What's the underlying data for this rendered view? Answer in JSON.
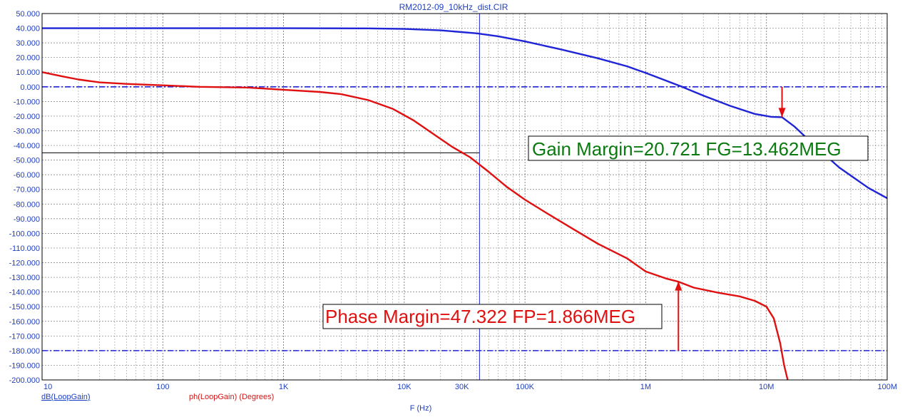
{
  "chart_data": {
    "type": "line",
    "title": "RM2012-09_10kHz_dist.CIR",
    "xlabel": "F (Hz)",
    "xscale": "log",
    "xlim": [
      10,
      100000000
    ],
    "ylim": [
      -200,
      50
    ],
    "x_ticks": [
      {
        "value": 10,
        "label": "10"
      },
      {
        "value": 100,
        "label": "100"
      },
      {
        "value": 1000,
        "label": "1K"
      },
      {
        "value": 10000,
        "label": "10K"
      },
      {
        "value": 30000,
        "label": "30K"
      },
      {
        "value": 100000,
        "label": "100K"
      },
      {
        "value": 1000000,
        "label": "1M"
      },
      {
        "value": 10000000,
        "label": "10M"
      },
      {
        "value": 100000000,
        "label": "100M"
      }
    ],
    "y_ticks": [
      {
        "value": 50,
        "label": "50.000"
      },
      {
        "value": 40,
        "label": "40.000"
      },
      {
        "value": 30,
        "label": "30.000"
      },
      {
        "value": 20,
        "label": "20.000"
      },
      {
        "value": 10,
        "label": "10.000"
      },
      {
        "value": 0,
        "label": "0.000"
      },
      {
        "value": -10,
        "label": "-10.000"
      },
      {
        "value": -20,
        "label": "-20.000"
      },
      {
        "value": -30,
        "label": "-30.000"
      },
      {
        "value": -40,
        "label": "-40.000"
      },
      {
        "value": -50,
        "label": "-50.000"
      },
      {
        "value": -60,
        "label": "-60.000"
      },
      {
        "value": -70,
        "label": "-70.000"
      },
      {
        "value": -80,
        "label": "-80.000"
      },
      {
        "value": -90,
        "label": "-90.000"
      },
      {
        "value": -100,
        "label": "-100.000"
      },
      {
        "value": -110,
        "label": "-110.000"
      },
      {
        "value": -120,
        "label": "-120.000"
      },
      {
        "value": -130,
        "label": "-130.000"
      },
      {
        "value": -140,
        "label": "-140.000"
      },
      {
        "value": -150,
        "label": "-150.000"
      },
      {
        "value": -160,
        "label": "-160.000"
      },
      {
        "value": -170,
        "label": "-170.000"
      },
      {
        "value": -180,
        "label": "-180.000"
      },
      {
        "value": -190,
        "label": "-190.000"
      },
      {
        "value": -200,
        "label": "-200.000"
      }
    ],
    "grid": true,
    "series": [
      {
        "name": "dB(LoopGain)",
        "color": "#1f24d6",
        "x": [
          10,
          100,
          1000,
          5000,
          10000,
          20000,
          40000,
          60000,
          100000,
          200000,
          400000,
          700000,
          1000000,
          1500000,
          2000000,
          3000000,
          5000000,
          8000000,
          11000000,
          13462000,
          17000000,
          25000000,
          40000000,
          70000000,
          100000000
        ],
        "y": [
          40,
          40,
          40,
          39.9,
          39.5,
          38.5,
          36.5,
          34.5,
          31,
          25.5,
          19.5,
          14,
          9.5,
          4,
          0,
          -6,
          -13,
          -18.5,
          -20.5,
          -20.7,
          -27,
          -40,
          -55,
          -69,
          -76
        ]
      },
      {
        "name": "ph(LoopGain) (Degrees)",
        "color": "#e01010",
        "x": [
          10,
          15,
          20,
          30,
          50,
          70,
          100,
          200,
          500,
          1000,
          2000,
          3000,
          5000,
          8000,
          12000,
          18000,
          25000,
          35000,
          50000,
          70000,
          100000,
          150000,
          250000,
          400000,
          700000,
          1000000,
          1500000,
          1866000,
          2500000,
          4000000,
          6000000,
          8000000,
          10000000,
          11500000,
          13000000,
          14000000,
          15000000
        ],
        "y": [
          10,
          7,
          5,
          3,
          2,
          1.5,
          1,
          0,
          -0.5,
          -2,
          -3.5,
          -5,
          -9,
          -15,
          -23,
          -33,
          -41,
          -48,
          -58,
          -68,
          -77,
          -86,
          -97,
          -107,
          -117,
          -126,
          -131,
          -133,
          -137,
          -140.5,
          -143,
          -146,
          -150,
          -158,
          -175,
          -190,
          -205
        ]
      }
    ],
    "reference_lines": [
      {
        "axis": "y",
        "value": 0,
        "style": "dash-dot",
        "color": "#1f24d6"
      },
      {
        "axis": "y",
        "value": -180,
        "style": "dash-dot",
        "color": "#1f24d6"
      },
      {
        "axis": "y",
        "value": -45,
        "style": "solid",
        "color": "#000000",
        "x_to": 42000
      },
      {
        "axis": "x",
        "value": 42000,
        "style": "solid",
        "color": "#1f24d6"
      }
    ],
    "markers": [
      {
        "x": 13462000,
        "y_from": 0,
        "y_to": -20.721,
        "color": "#e01010",
        "direction": "down"
      },
      {
        "x": 1866000,
        "y_from": -180,
        "y_to": -132.678,
        "color": "#e01010",
        "direction": "up"
      }
    ],
    "annotations": [
      {
        "text": "Gain Margin=20.721 FG=13.462MEG",
        "color": "#0a7a10"
      },
      {
        "text": "Phase Margin=47.322 FP=1.866MEG",
        "color": "#e01010"
      }
    ],
    "legend": [
      {
        "text": "dB(LoopGain)",
        "color": "#1f3fbf"
      },
      {
        "text": "ph(LoopGain) (Degrees)",
        "color": "#d01818"
      }
    ]
  }
}
